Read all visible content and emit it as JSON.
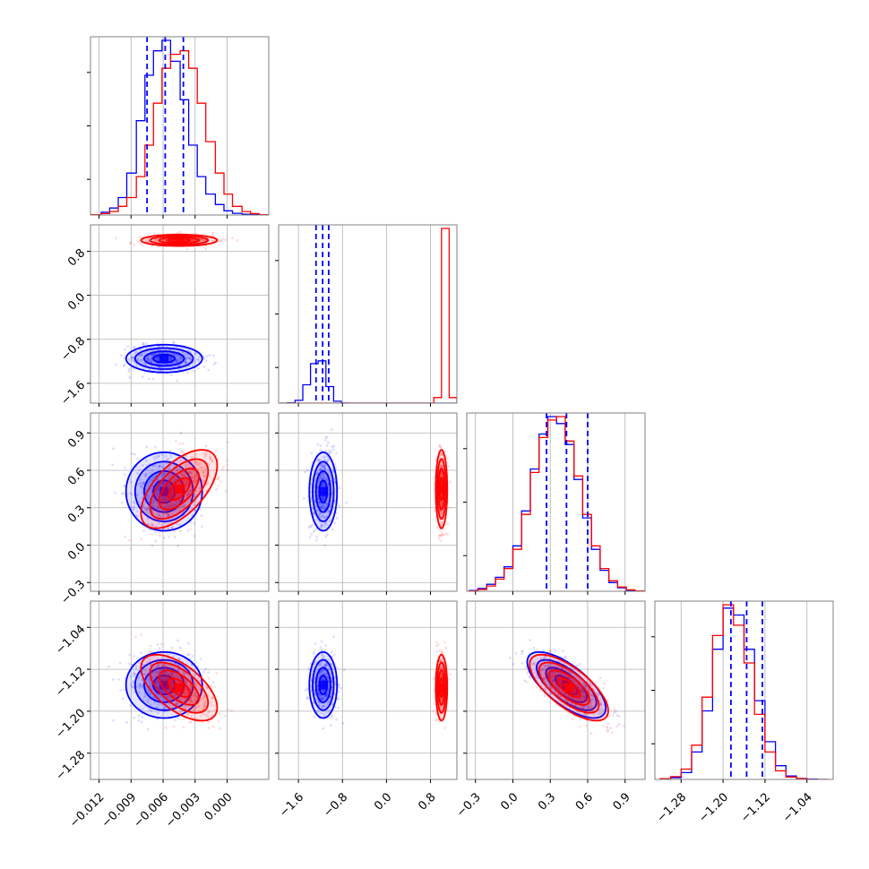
{
  "colors": {
    "series_a": "#0000ff",
    "series_b": "#ff0000",
    "grid": "#b0b0b0",
    "axes": "#808080"
  },
  "chart_data": {
    "type": "corner",
    "grid": true,
    "series": [
      {
        "color": "#0000ff",
        "means": [
          -0.0059,
          -1.15,
          0.43,
          -1.15
        ],
        "stds": [
          0.0017,
          0.12,
          0.15,
          0.03
        ],
        "correlations": {
          "0-2": 0.0,
          "0-3": 0.0,
          "2-3": -0.7
        },
        "quantile_lines": {
          "param_1": [
            -0.0075,
            -0.0058,
            -0.0041
          ],
          "param_2": [
            -1.28,
            -1.16,
            -1.05
          ],
          "param_3": [
            0.27,
            0.43,
            0.6
          ],
          "param_4": [
            -1.185,
            -1.155,
            -1.125
          ]
        }
      },
      {
        "color": "#ff0000",
        "means": [
          -0.0045,
          1.0,
          0.45,
          -1.155
        ],
        "stds": [
          0.0017,
          0.05,
          0.15,
          0.03
        ],
        "correlations": {
          "0-2": 0.6,
          "0-3": -0.6,
          "2-3": -0.7
        }
      }
    ],
    "panels": {
      "hist_1": {
        "bins": [
          -0.0127,
          -0.0118,
          -0.011,
          -0.0102,
          -0.0094,
          -0.0085,
          -0.0077,
          -0.0069,
          -0.0061,
          -0.0053,
          -0.0044,
          -0.0036,
          -0.0028,
          -0.002,
          -0.0011,
          -0.0003,
          0.0005,
          0.0014,
          0.0022,
          0.003,
          0.0038
        ],
        "counts_blue": [
          1,
          8,
          20,
          50,
          120,
          270,
          400,
          470,
          500,
          440,
          330,
          200,
          110,
          60,
          30,
          12,
          5,
          2,
          1,
          0
        ],
        "counts_red": [
          1,
          4,
          10,
          25,
          50,
          110,
          200,
          320,
          420,
          460,
          470,
          420,
          320,
          210,
          120,
          60,
          25,
          10,
          4,
          1
        ]
      },
      "hist_2": {
        "bins": [
          -1.94,
          -1.8,
          -1.66,
          -1.52,
          -1.38,
          -1.24,
          -1.1,
          -0.96,
          -0.82,
          -0.68,
          -0.54,
          -0.4,
          -0.26,
          -0.12,
          0.02,
          0.16,
          0.3,
          0.44,
          0.58,
          0.72,
          0.86,
          1.0,
          1.14,
          1.28
        ],
        "counts_blue": [
          0,
          3,
          30,
          200,
          430,
          460,
          180,
          20,
          1,
          0,
          0,
          0,
          0,
          0,
          0,
          0,
          0,
          0,
          0,
          0,
          0,
          0,
          0
        ],
        "counts_red": [
          0,
          0,
          0,
          0,
          0,
          0,
          0,
          0,
          0,
          0,
          0,
          0,
          0,
          0,
          0,
          0,
          0,
          0,
          0,
          0,
          60,
          1900,
          60
        ]
      },
      "hist_3": {
        "bins": [
          -0.35,
          -0.28,
          -0.21,
          -0.14,
          -0.07,
          0.0,
          0.07,
          0.14,
          0.21,
          0.28,
          0.35,
          0.42,
          0.49,
          0.56,
          0.63,
          0.7,
          0.77,
          0.84,
          0.91,
          0.98,
          1.05
        ],
        "counts_blue": [
          2,
          8,
          20,
          40,
          70,
          130,
          230,
          350,
          450,
          500,
          480,
          420,
          320,
          210,
          120,
          60,
          25,
          10,
          3,
          1
        ],
        "counts_red": [
          1,
          5,
          15,
          35,
          65,
          120,
          220,
          340,
          440,
          490,
          500,
          430,
          330,
          220,
          130,
          65,
          30,
          12,
          4,
          1
        ]
      },
      "hist_4": {
        "bins": [
          -1.32,
          -1.3,
          -1.28,
          -1.26,
          -1.24,
          -1.22,
          -1.2,
          -1.18,
          -1.16,
          -1.14,
          -1.12,
          -1.1,
          -1.08,
          -1.06,
          -1.04,
          -1.02,
          -1.0
        ],
        "counts_blue": [
          1,
          5,
          20,
          80,
          200,
          380,
          500,
          480,
          380,
          230,
          110,
          40,
          10,
          3,
          1,
          0
        ],
        "counts_red": [
          2,
          8,
          30,
          100,
          240,
          420,
          510,
          450,
          340,
          190,
          80,
          25,
          7,
          2,
          0,
          0
        ]
      }
    },
    "axes": [
      {
        "ticks": [
          -0.012,
          -0.009,
          -0.006,
          -0.003,
          0.0
        ],
        "tick_labels": [
          "−0.012",
          "−0.009",
          "−0.006",
          "−0.003",
          "0.000"
        ]
      },
      {
        "ticks": [
          -1.6,
          -0.8,
          0.0,
          0.8
        ],
        "tick_labels": [
          "−1.6",
          "−0.8",
          "0.0",
          "0.8"
        ]
      },
      {
        "ticks": [
          -0.3,
          0.0,
          0.3,
          0.6,
          0.9
        ],
        "tick_labels": [
          "−0.3",
          "0.0",
          "0.3",
          "0.6",
          "0.9"
        ]
      },
      {
        "ticks": [
          -1.28,
          -1.2,
          -1.12,
          -1.04
        ],
        "tick_labels": [
          "−1.28",
          "−1.20",
          "−1.12",
          "−1.04"
        ]
      }
    ]
  }
}
